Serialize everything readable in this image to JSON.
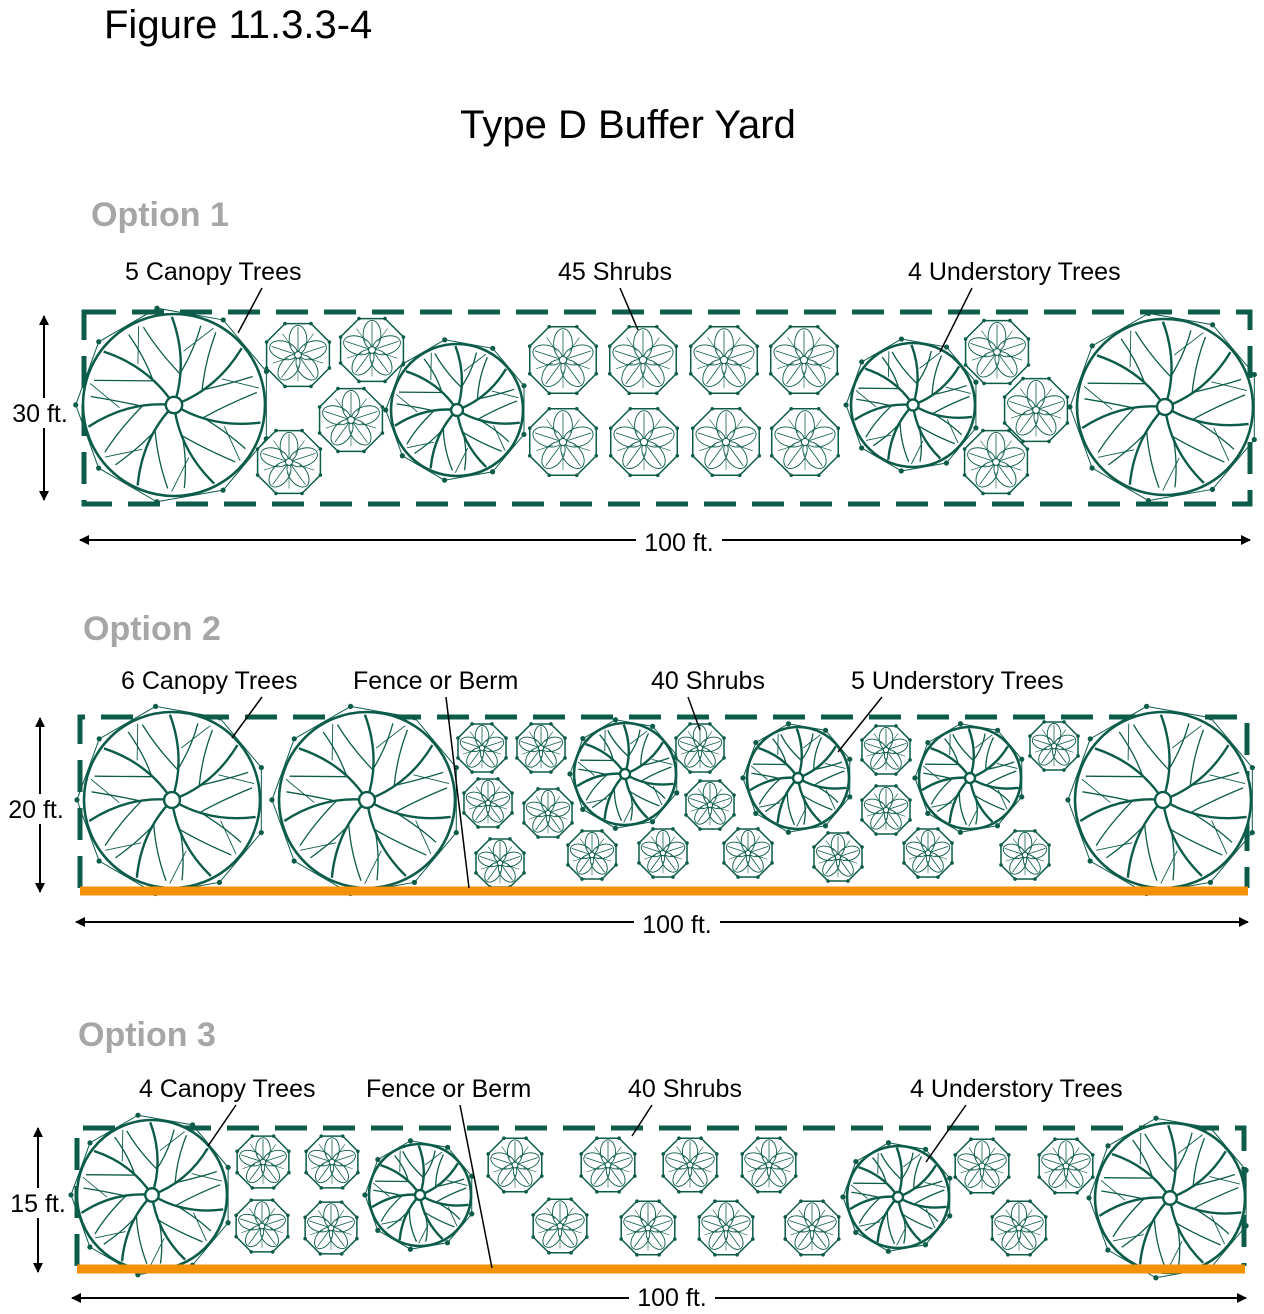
{
  "figure_label": "Figure 11.3.3-4",
  "title": "Type D Buffer Yard",
  "colors": {
    "plant": "#0d5c4a",
    "fence": "#f39200",
    "option_heading": "#a6a6a6",
    "text": "#000000"
  },
  "options": [
    {
      "heading": "Option 1",
      "depth": "30 ft.",
      "length": "100 ft.",
      "labels": {
        "canopy": "5 Canopy Trees",
        "shrubs": "45 Shrubs",
        "understory": "4 Understory Trees"
      }
    },
    {
      "heading": "Option 2",
      "depth": "20 ft.",
      "length": "100 ft.",
      "labels": {
        "canopy": "6 Canopy Trees",
        "fence": "Fence or Berm",
        "shrubs": "40 Shrubs",
        "understory": "5 Understory Trees"
      }
    },
    {
      "heading": "Option 3",
      "depth": "15 ft.",
      "length": "100 ft.",
      "labels": {
        "canopy": "4 Canopy Trees",
        "fence": "Fence or Berm",
        "shrubs": "40 Shrubs",
        "understory": "4 Understory Trees"
      }
    }
  ]
}
